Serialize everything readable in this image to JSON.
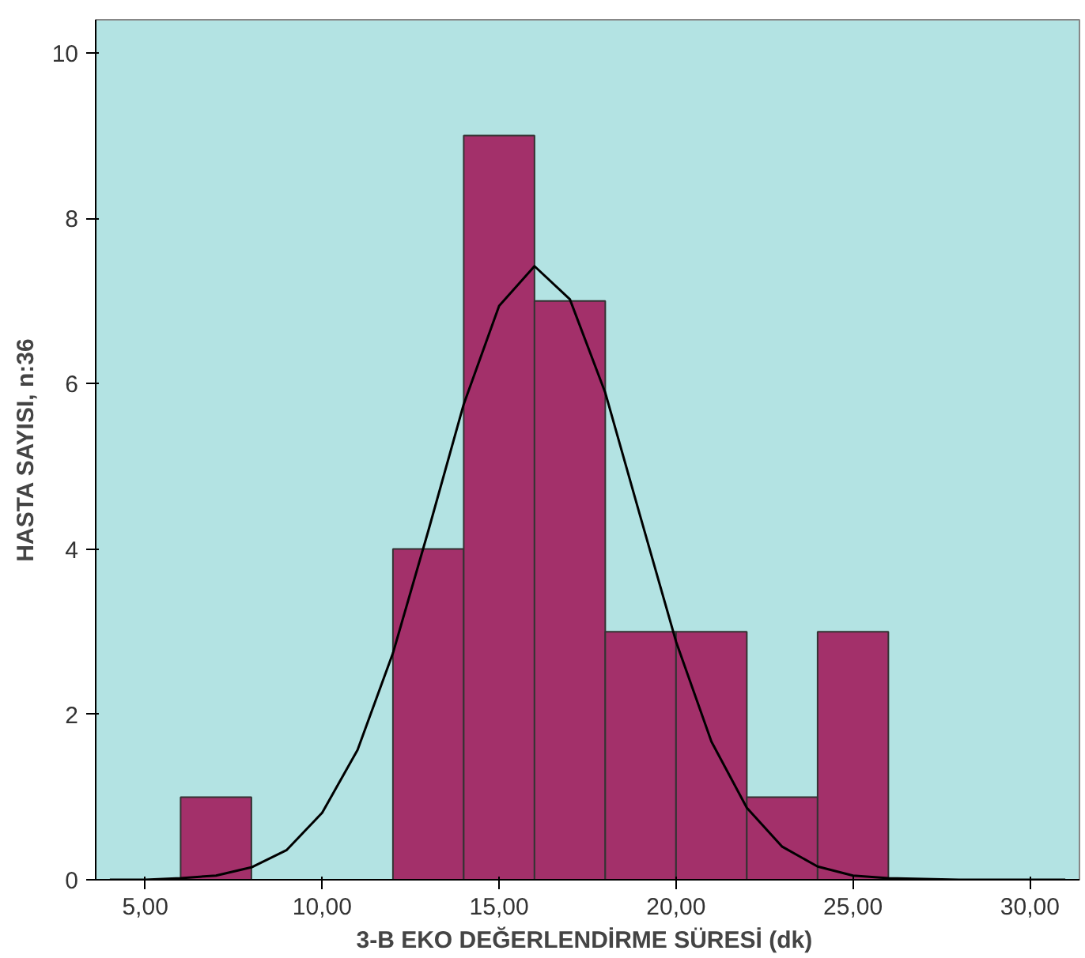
{
  "chart_data": {
    "type": "histogram",
    "xlabel": "3-B EKO DEĞERLENDİRME  SÜRESİ (dk)",
    "ylabel": "HASTA SAYISI, n:36",
    "bins": [
      6,
      8,
      10,
      12,
      14,
      16,
      18,
      20,
      22,
      24,
      26
    ],
    "values": [
      1,
      0,
      0,
      4,
      9,
      7,
      3,
      3,
      1,
      3
    ],
    "color": "#a3306a",
    "series": [
      {
        "type": "line",
        "color": "#000000",
        "x": [
          4,
          5,
          6,
          7,
          8,
          9,
          10,
          11,
          12,
          13,
          14,
          15,
          16,
          17,
          18,
          19,
          20,
          21,
          22,
          23,
          24,
          25,
          26,
          27,
          28,
          29,
          30,
          31
        ],
        "values": [
          0.0,
          0.0,
          0.02,
          0.05,
          0.15,
          0.36,
          0.81,
          1.57,
          2.74,
          4.22,
          5.75,
          6.94,
          7.42,
          7.02,
          5.89,
          4.38,
          2.88,
          1.67,
          0.87,
          0.4,
          0.16,
          0.05,
          0.02,
          0.01,
          0.0,
          0.0,
          0.0,
          0.0
        ]
      }
    ],
    "xlim": [
      3.6,
      31.4
    ],
    "ylim": [
      0,
      10.4
    ],
    "xticks": [
      {
        "value": 5,
        "label": "5,00"
      },
      {
        "value": 10,
        "label": "10,00"
      },
      {
        "value": 15,
        "label": "15,00"
      },
      {
        "value": 20,
        "label": "20,00"
      },
      {
        "value": 25,
        "label": "25,00"
      },
      {
        "value": 30,
        "label": "30,00"
      }
    ],
    "yticks": [
      0,
      2,
      4,
      6,
      8,
      10
    ],
    "grid": false
  }
}
